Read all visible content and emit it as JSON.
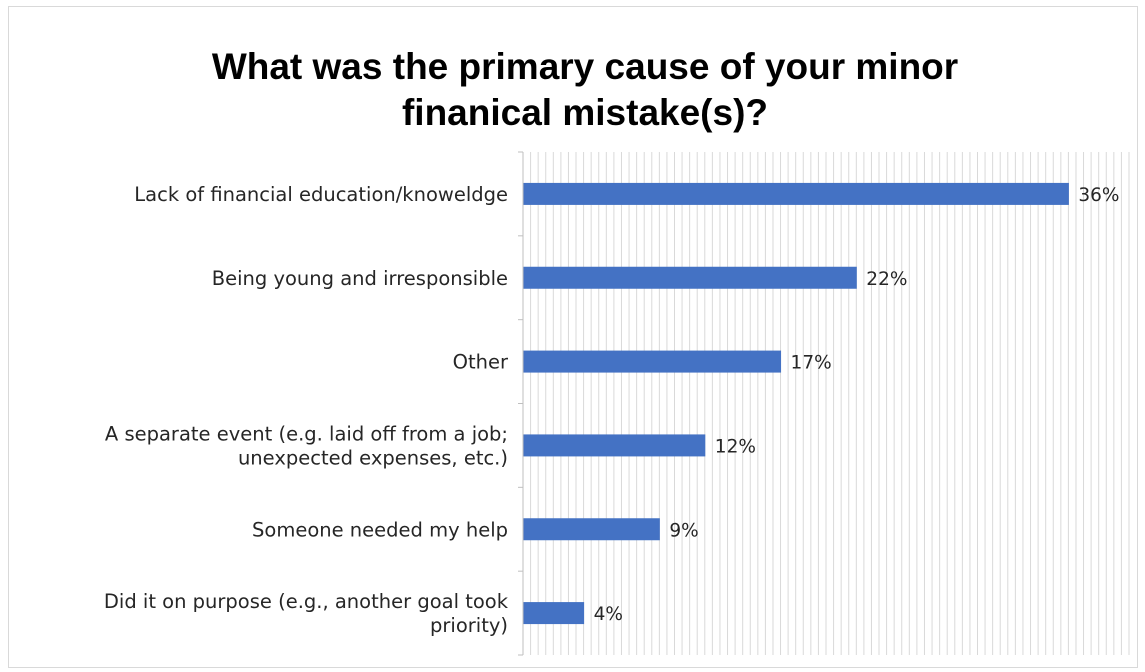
{
  "chart_data": {
    "type": "bar",
    "orientation": "horizontal",
    "title": "What was the primary cause of your minor finanical mistake(s)?",
    "title_lines": [
      "What was the primary cause of your minor",
      "finanical mistake(s)?"
    ],
    "categories": [
      "Lack of financial education/knowledge",
      "Being young and irresponsible",
      "Other",
      "A separate event (e.g. laid off from a job; unexpected expenses, etc.)",
      "Someone needed my help",
      "Did it on purpose (e.g., another goal took priority)"
    ],
    "category_lines": [
      [
        "Lack of financial education/knoweldge"
      ],
      [
        "Being young and irresponsible"
      ],
      [
        "Other"
      ],
      [
        "A separate event (e.g. laid off from a job;",
        "unexpected expenses, etc.)"
      ],
      [
        "Someone needed my help"
      ],
      [
        "Did it on purpose (e.g., another goal took",
        "priority)"
      ]
    ],
    "values": [
      36,
      22,
      17,
      12,
      9,
      4
    ],
    "data_labels": [
      "36%",
      "22%",
      "17%",
      "12%",
      "9%",
      "4%"
    ],
    "xlim": [
      0,
      40
    ],
    "grid": true,
    "bar_color": "#4472c4"
  }
}
